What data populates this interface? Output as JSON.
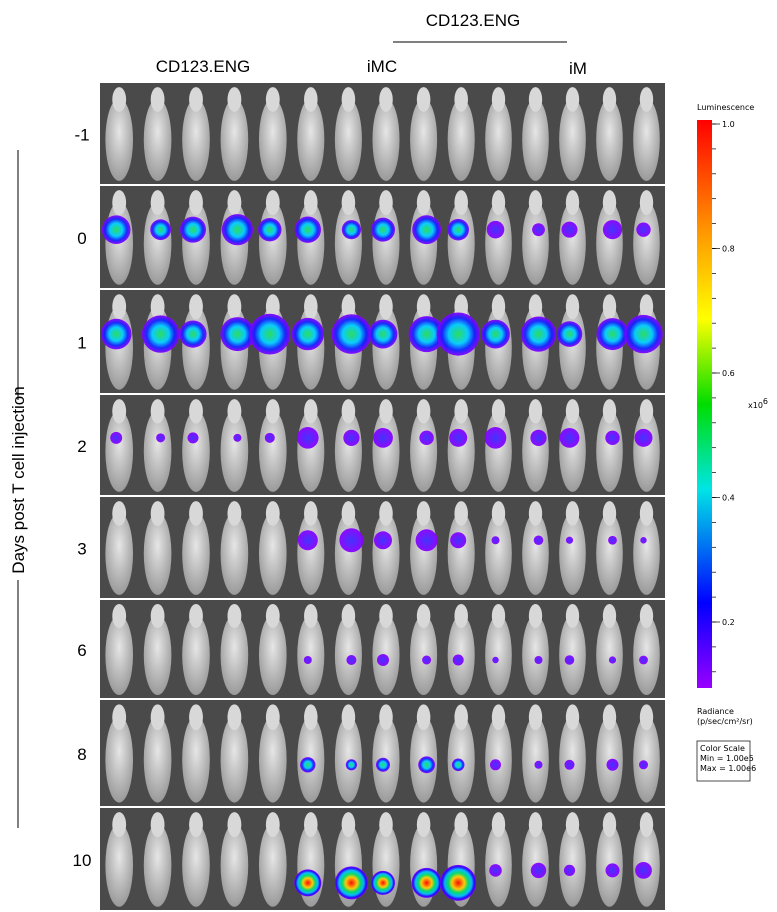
{
  "header": {
    "group_title": "CD123.ENG",
    "columns": [
      "CD123.ENG",
      "iMC",
      "iM"
    ]
  },
  "rows": {
    "labels": [
      "-1",
      "0",
      "1",
      "2",
      "3",
      "6",
      "8",
      "10"
    ],
    "axis_title": "Days post T cell injection"
  },
  "colorbar": {
    "title": "Luminescence",
    "ticks": [
      "1.0",
      "0.8",
      "0.6",
      "0.4",
      "0.2"
    ],
    "multiplier": "x10",
    "multiplier_exp": "6",
    "unit_title": "Radiance",
    "unit": "(p/sec/cm²/sr)",
    "scale_box": [
      "Color Scale",
      "Min = 1.00e5",
      "Max = 1.00e6"
    ]
  }
}
